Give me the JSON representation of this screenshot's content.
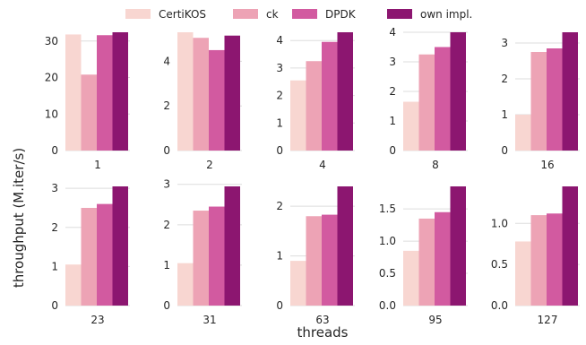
{
  "chart_data": {
    "type": "bar",
    "layout": "grid 2x5 small multiples, shared legend top-center",
    "xlabel": "threads",
    "ylabel": "throughput (M.iter/s)",
    "grid": "horizontal",
    "series": [
      {
        "name": "CertiKOS",
        "color": "#f8d6d1"
      },
      {
        "name": "ck",
        "color": "#eda3b5"
      },
      {
        "name": "DPDK",
        "color": "#d25aa0"
      },
      {
        "name": "own impl.",
        "color": "#8c1670"
      }
    ],
    "panels": [
      {
        "category": "1",
        "values": [
          31.8,
          20.8,
          31.6,
          32.4
        ],
        "ylim": [
          0,
          32.4
        ],
        "yticks": [
          "0",
          "10",
          "20",
          "30"
        ],
        "ytick_values": [
          0,
          10,
          20,
          30
        ]
      },
      {
        "category": "2",
        "values": [
          5.3,
          5.05,
          4.5,
          5.15
        ],
        "ylim": [
          0,
          5.3
        ],
        "yticks": [
          "0",
          "2",
          "4"
        ],
        "ytick_values": [
          0,
          2,
          4
        ]
      },
      {
        "category": "4",
        "values": [
          2.55,
          3.25,
          3.95,
          4.3
        ],
        "ylim": [
          0,
          4.3
        ],
        "yticks": [
          "0",
          "1",
          "2",
          "3",
          "4"
        ],
        "ytick_values": [
          0,
          1,
          2,
          3,
          4
        ]
      },
      {
        "category": "8",
        "values": [
          1.65,
          3.25,
          3.5,
          4.0
        ],
        "ylim": [
          0,
          4.0
        ],
        "yticks": [
          "0",
          "1",
          "2",
          "3",
          "4"
        ],
        "ytick_values": [
          0,
          1,
          2,
          3,
          4
        ]
      },
      {
        "category": "16",
        "values": [
          1.0,
          2.75,
          2.85,
          3.3
        ],
        "ylim": [
          0,
          3.3
        ],
        "yticks": [
          "0",
          "1",
          "2",
          "3"
        ],
        "ytick_values": [
          0,
          1,
          2,
          3
        ]
      },
      {
        "category": "23",
        "values": [
          1.05,
          2.5,
          2.6,
          3.05
        ],
        "ylim": [
          0,
          3.05
        ],
        "yticks": [
          "0",
          "1",
          "2",
          "3"
        ],
        "ytick_values": [
          0,
          1,
          2,
          3
        ]
      },
      {
        "category": "31",
        "values": [
          1.05,
          2.35,
          2.45,
          2.95
        ],
        "ylim": [
          0,
          2.95
        ],
        "yticks": [
          "0",
          "1",
          "2",
          "3"
        ],
        "ytick_values": [
          0,
          1,
          2,
          3
        ]
      },
      {
        "category": "63",
        "values": [
          0.9,
          1.8,
          1.83,
          2.4
        ],
        "ylim": [
          0,
          2.4
        ],
        "yticks": [
          "0",
          "1",
          "2"
        ],
        "ytick_values": [
          0,
          1,
          2
        ]
      },
      {
        "category": "95",
        "values": [
          0.85,
          1.35,
          1.45,
          1.85
        ],
        "ylim": [
          0,
          1.85
        ],
        "yticks": [
          "0.0",
          "0.5",
          "1.0",
          "1.5"
        ],
        "ytick_values": [
          0,
          0.5,
          1.0,
          1.5
        ]
      },
      {
        "category": "127",
        "values": [
          0.78,
          1.1,
          1.12,
          1.45
        ],
        "ylim": [
          0,
          1.45
        ],
        "yticks": [
          "0.0",
          "0.5",
          "1.0"
        ],
        "ytick_values": [
          0,
          0.5,
          1.0
        ]
      }
    ]
  }
}
